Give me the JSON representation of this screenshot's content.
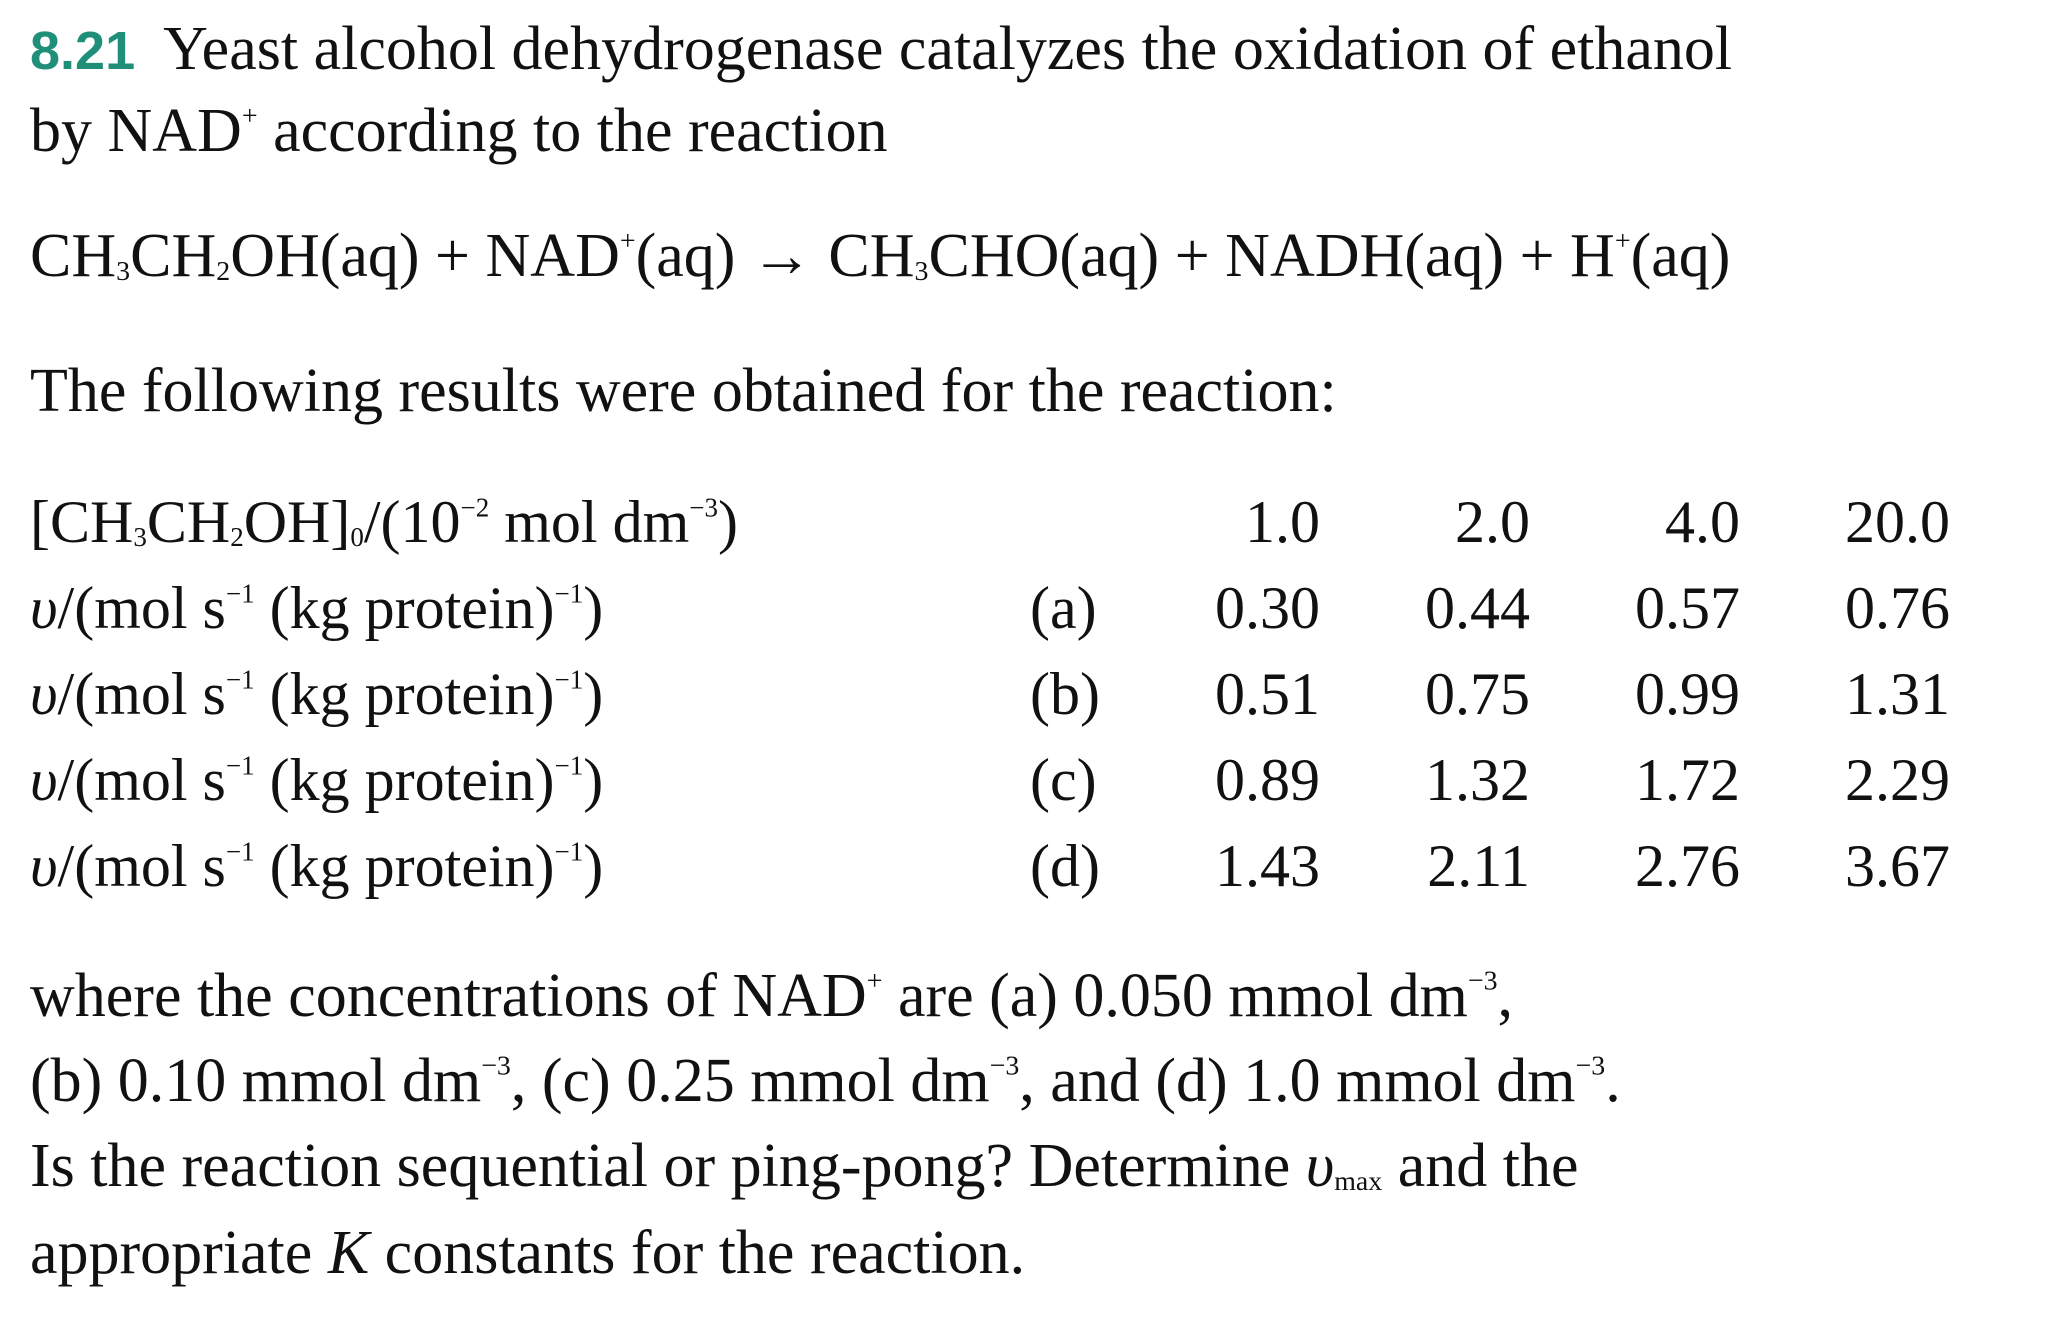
{
  "problem": {
    "number": "8.21",
    "intro_line1": "Yeast alcohol dehydrogenase catalyzes the oxidation of ethanol",
    "intro_line2_a": "by NAD",
    "intro_line2_b": " according to the reaction",
    "superscript_plus": "+",
    "superscript_minus1": "−1",
    "superscript_minus3": "−3",
    "superscript_minus2": "−2"
  },
  "equation": {
    "t1": "CH",
    "s1": "3",
    "t2": "CH",
    "s2": "2",
    "t3": "OH(aq) + NAD",
    "t4": "(aq) → CH",
    "s3": "3",
    "t5": "CHO(aq) + NADH(aq) + H",
    "t6": "(aq)"
  },
  "results_intro": "The following results were obtained for the reaction:",
  "table": {
    "conc_label": {
      "a": "[CH",
      "s1": "3",
      "b": "CH",
      "s2": "2",
      "c": "OH]",
      "s3": "0",
      "d": "/(10",
      "e": " mol dm",
      "f": ")"
    },
    "rate_label": {
      "v": "υ",
      "a": "/(mol s",
      "b": " (kg protein)",
      "c": ")"
    },
    "header_values": [
      "1.0",
      "2.0",
      "4.0",
      "20.0"
    ],
    "rows": [
      {
        "tag": "(a)",
        "values": [
          "0.30",
          "0.44",
          "0.57",
          "0.76"
        ]
      },
      {
        "tag": "(b)",
        "values": [
          "0.51",
          "0.75",
          "0.99",
          "1.31"
        ]
      },
      {
        "tag": "(c)",
        "values": [
          "0.89",
          "1.32",
          "1.72",
          "2.29"
        ]
      },
      {
        "tag": "(d)",
        "values": [
          "1.43",
          "2.11",
          "2.76",
          "3.67"
        ]
      }
    ]
  },
  "closing": {
    "l1a": "where the concentrations of NAD",
    "l1b": " are (a) 0.050 mmol dm",
    "l1c": ",",
    "l2a": "(b) 0.10 mmol dm",
    "l2b": ", (c) 0.25 mmol dm",
    "l2c": ", and (d) 1.0 mmol dm",
    "l2d": ".",
    "l3a": "Is the reaction sequential or ping-pong? Determine ",
    "l3v": "υ",
    "l3sub": "max",
    "l3b": " and the",
    "l4a": "appropriate ",
    "l4k": "K",
    "l4b": " constants for the reaction."
  }
}
